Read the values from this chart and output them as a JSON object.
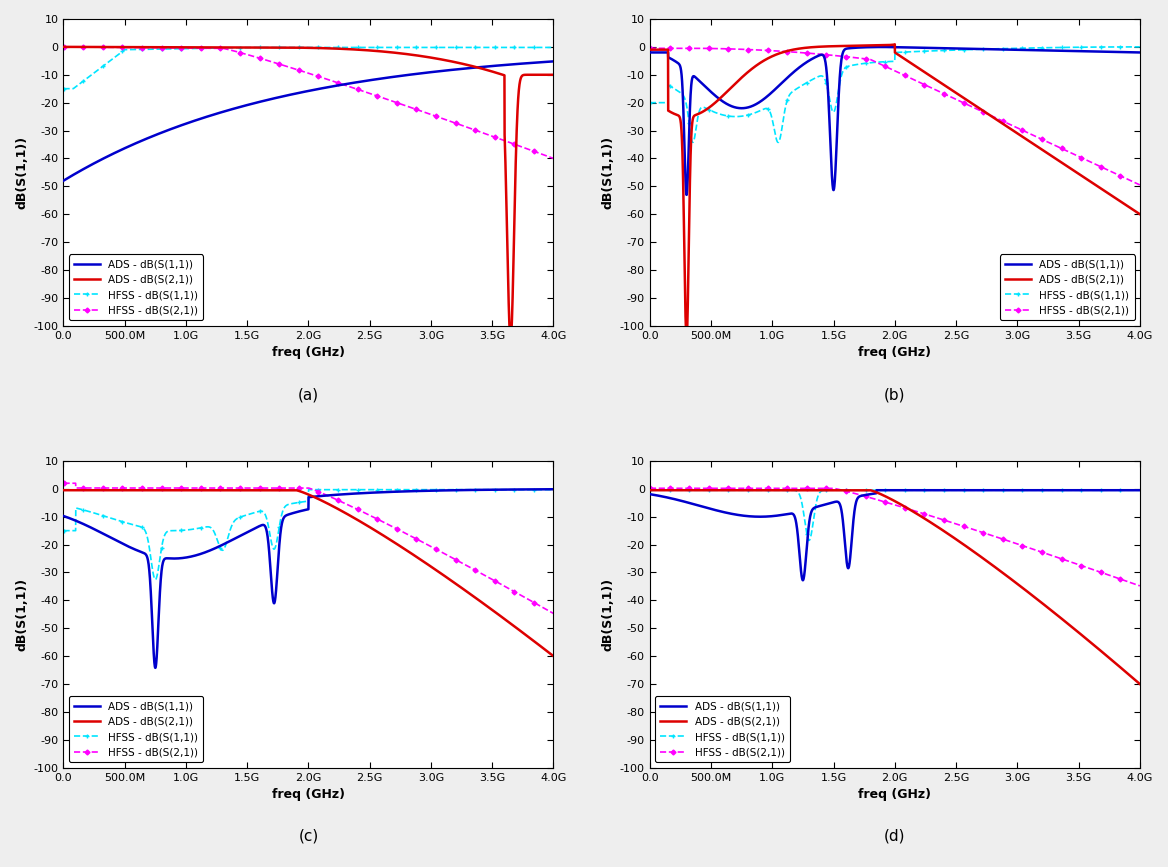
{
  "figsize": [
    11.68,
    8.67
  ],
  "dpi": 100,
  "background_color": "#eeeeee",
  "subplots": {
    "label_fontsize": 9,
    "tick_fontsize": 8,
    "legend_fontsize": 7.5,
    "xlabel": "freq (GHz)",
    "ylabel": "dB(S(1,1))",
    "ylim": [
      -100,
      10
    ],
    "yticks": [
      10,
      0,
      -10,
      -20,
      -30,
      -40,
      -50,
      -60,
      -70,
      -80,
      -90,
      -100
    ],
    "xlim": [
      0,
      4000000000.0
    ],
    "xtick_labels": [
      "0.0",
      "500.0M",
      "1.0G",
      "1.5G",
      "2.0G",
      "2.5G",
      "3.0G",
      "3.5G",
      "4.0G"
    ],
    "xtick_vals": [
      0,
      500000000.0,
      1000000000.0,
      1500000000.0,
      2000000000.0,
      2500000000.0,
      3000000000.0,
      3500000000.0,
      4000000000.0
    ],
    "colors": {
      "ads_s11": "#0000cc",
      "ads_s21": "#dd0000",
      "hfss_s11": "#00e5ff",
      "hfss_s21": "#ff00ff"
    },
    "subplot_labels": [
      "(a)",
      "(b)",
      "(c)",
      "(d)"
    ],
    "legend_locs": [
      "lower left",
      "lower right",
      "lower left",
      "lower left"
    ]
  }
}
